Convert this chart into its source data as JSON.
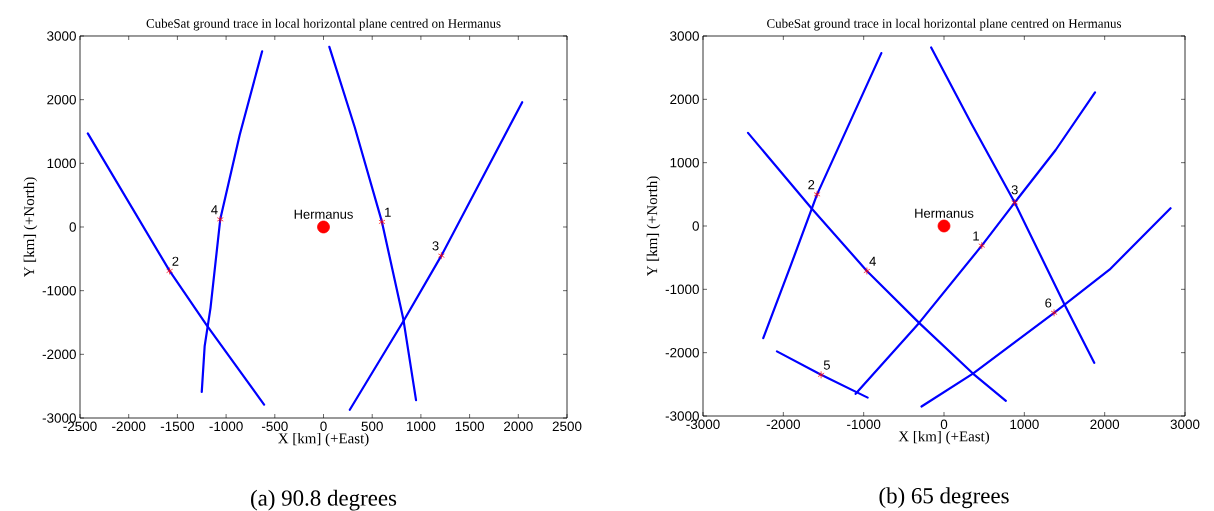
{
  "chart_data": [
    {
      "type": "line",
      "title": "CubeSat ground trace in local horizontal plane centred on Hermanus",
      "xlabel": "X [km] (+East)",
      "ylabel": "Y [km] (+North)",
      "xlim": [
        -2500,
        2500
      ],
      "ylim": [
        -3000,
        3000
      ],
      "xticks": [
        -2500,
        -2000,
        -1500,
        -1000,
        -500,
        0,
        500,
        1000,
        1500,
        2000,
        2500
      ],
      "yticks": [
        -3000,
        -2000,
        -1000,
        0,
        1000,
        2000,
        3000
      ],
      "series": [
        {
          "color": "#0000ff",
          "x": [
            -2420,
            -1580,
            -1200,
            -610
          ],
          "values": [
            1470,
            -690,
            -1540,
            -2790
          ]
        },
        {
          "color": "#0000ff",
          "x": [
            -630,
            -860,
            -1060,
            -1160,
            -1220,
            -1250
          ],
          "values": [
            2760,
            1450,
            120,
            -1270,
            -1870,
            -2590
          ]
        },
        {
          "color": "#0000ff",
          "x": [
            60,
            320,
            600,
            820,
            950
          ],
          "values": [
            2830,
            1570,
            80,
            -1450,
            -2720
          ]
        },
        {
          "color": "#0000ff",
          "x": [
            2040,
            1210,
            820,
            270
          ],
          "values": [
            1960,
            -450,
            -1480,
            -2870
          ]
        },
        {
          "type": "scatter",
          "marker": "cross",
          "color": "#ff0000",
          "x": [
            600,
            -1580,
            1210,
            -1060
          ],
          "values": [
            80,
            -690,
            -450,
            120
          ]
        },
        {
          "type": "scatter",
          "marker": "circle",
          "color": "#ff0000",
          "x": [
            0
          ],
          "values": [
            0
          ]
        }
      ],
      "annotations": [
        {
          "text": "1",
          "x": 600,
          "y": 80
        },
        {
          "text": "2",
          "x": -1580,
          "y": -690
        },
        {
          "text": "3",
          "x": 1210,
          "y": -450
        },
        {
          "text": "4",
          "x": -1060,
          "y": 120
        },
        {
          "text": "Hermanus",
          "x": 0,
          "y": 0
        },
        "(a) 90.8 degrees"
      ]
    },
    {
      "type": "line",
      "title": "CubeSat ground trace in local horizontal plane centred on Hermanus",
      "xlabel": "X [km] (+East)",
      "ylabel": "Y [km] (+North)",
      "xlim": [
        -3000,
        3000
      ],
      "ylim": [
        -3000,
        3000
      ],
      "xticks": [
        -3000,
        -2000,
        -1000,
        0,
        1000,
        2000,
        3000
      ],
      "yticks": [
        -3000,
        -2000,
        -1000,
        0,
        1000,
        2000,
        3000
      ],
      "series": [
        {
          "color": "#0000ff",
          "x": [
            -2440,
            -1650,
            -960,
            -310,
            360,
            770
          ],
          "values": [
            1470,
            280,
            -710,
            -1530,
            -2330,
            -2760
          ]
        },
        {
          "color": "#0000ff",
          "x": [
            -2250,
            -1910,
            -1580,
            -780
          ],
          "values": [
            -1770,
            -630,
            500,
            2730
          ]
        },
        {
          "color": "#0000ff",
          "x": [
            -160,
            340,
            880,
            1500,
            1870
          ],
          "values": [
            2820,
            1620,
            370,
            -1240,
            -2160
          ]
        },
        {
          "color": "#0000ff",
          "x": [
            -1100,
            -310,
            470,
            880,
            1390,
            1880
          ],
          "values": [
            -2650,
            -1530,
            -310,
            370,
            1200,
            2110
          ]
        },
        {
          "color": "#0000ff",
          "x": [
            -2080,
            -1530,
            -950
          ],
          "values": [
            -1980,
            -2350,
            -2710
          ]
        },
        {
          "color": "#0000ff",
          "x": [
            -280,
            360,
            1370,
            2060,
            2820
          ],
          "values": [
            -2850,
            -2330,
            -1370,
            -690,
            280
          ]
        },
        {
          "type": "scatter",
          "marker": "cross",
          "color": "#ff0000",
          "x": [
            470,
            -1580,
            880,
            -960,
            -1530,
            1370
          ],
          "values": [
            -310,
            500,
            370,
            -710,
            -2350,
            -1370
          ]
        },
        {
          "type": "scatter",
          "marker": "circle",
          "color": "#ff0000",
          "x": [
            0
          ],
          "values": [
            0
          ]
        }
      ],
      "annotations": [
        {
          "text": "1",
          "x": 470,
          "y": -310
        },
        {
          "text": "2",
          "x": -1580,
          "y": 500
        },
        {
          "text": "3",
          "x": 880,
          "y": 370
        },
        {
          "text": "4",
          "x": -960,
          "y": -710
        },
        {
          "text": "5",
          "x": -1530,
          "y": -2350
        },
        {
          "text": "6",
          "x": 1370,
          "y": -1370
        },
        {
          "text": "Hermanus",
          "x": 0,
          "y": 0
        },
        "(b) 65 degrees"
      ]
    }
  ]
}
